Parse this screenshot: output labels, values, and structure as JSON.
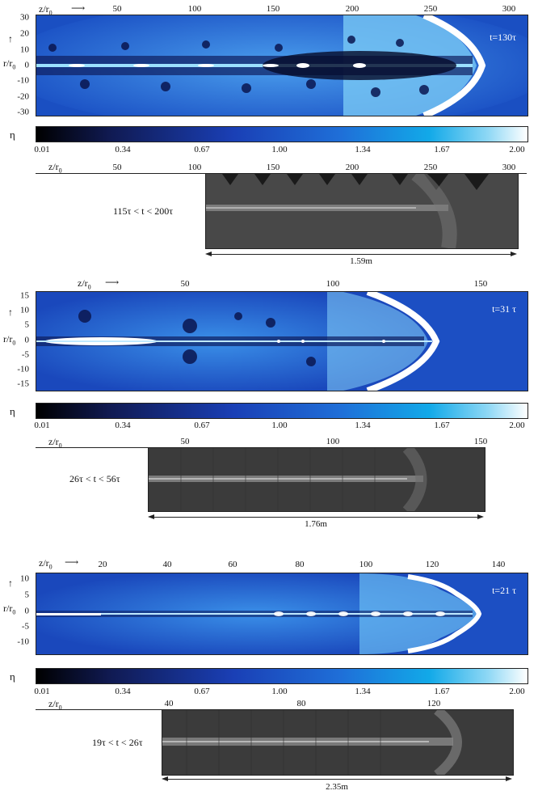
{
  "colorbar": {
    "symbol": "η",
    "ticks": [
      "0.01",
      "0.34",
      "0.67",
      "1.00",
      "1.34",
      "1.67",
      "2.00"
    ]
  },
  "panels": [
    {
      "sim_xlabel": "z/r",
      "sim_xlabel_sub": "0",
      "sim_ylabel": "r/r",
      "sim_ylabel_sub": "0",
      "sim_xticks": [
        "50",
        "100",
        "150",
        "200",
        "250",
        "300"
      ],
      "sim_yticks": [
        "30",
        "20",
        "10",
        "0",
        "-10",
        "-20",
        "-30"
      ],
      "time": "t=130τ",
      "photo_xlabel": "z/r",
      "photo_xlabel_sub": "0",
      "photo_xticks": [
        "50",
        "100",
        "150",
        "200",
        "250",
        "300"
      ],
      "photo_time": "115τ < t < 200τ",
      "length": "1.59m"
    },
    {
      "sim_xlabel": "z/r",
      "sim_xlabel_sub": "0",
      "sim_ylabel": "r/r",
      "sim_ylabel_sub": "0",
      "sim_xticks": [
        "50",
        "100",
        "150"
      ],
      "sim_yticks": [
        "15",
        "10",
        "5",
        "0",
        "-5",
        "-10",
        "-15"
      ],
      "time": "t=31 τ",
      "photo_xlabel": "z/r",
      "photo_xlabel_sub": "0",
      "photo_xticks": [
        "50",
        "100",
        "150"
      ],
      "photo_time": "26τ < t < 56τ",
      "length": "1.76m"
    },
    {
      "sim_xlabel": "z/r",
      "sim_xlabel_sub": "0",
      "sim_ylabel": "r/r",
      "sim_ylabel_sub": "0",
      "sim_xticks": [
        "20",
        "40",
        "60",
        "80",
        "100",
        "120",
        "140"
      ],
      "sim_yticks": [
        "10",
        "5",
        "0",
        "-5",
        "-10"
      ],
      "time": "t=21 τ",
      "photo_xlabel": "z/r",
      "photo_xlabel_sub": "0",
      "photo_xticks": [
        "40",
        "80",
        "120"
      ],
      "photo_time": "19τ < t < 26τ",
      "length": "2.35m"
    }
  ]
}
